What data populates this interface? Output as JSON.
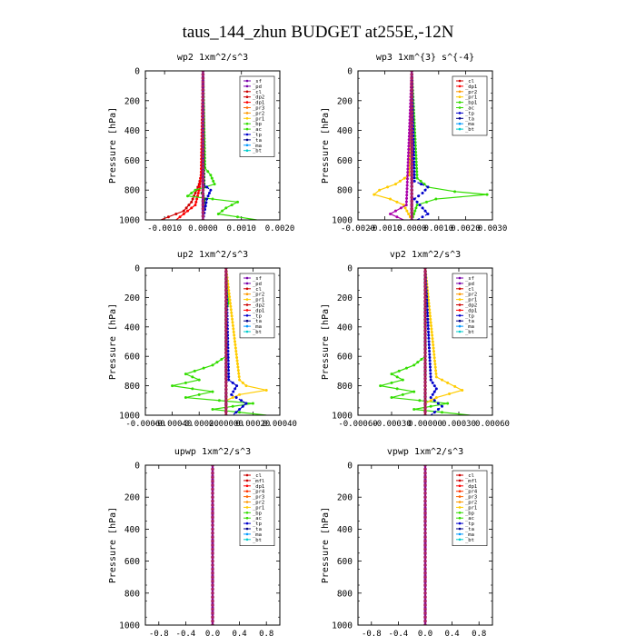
{
  "figure_title": "taus_144_zhun  BUDGET at255E,-12N",
  "chart_data": [
    {
      "id": "wp2",
      "type": "line",
      "title": "wp2   1xm^2/s^3",
      "ylabel": "Pressure [hPa]",
      "ylim": [
        1000,
        0
      ],
      "xlim": [
        -0.0015,
        0.002
      ],
      "xticks": [
        "-0.0010",
        "0.0000",
        "0.0010",
        "0.0020"
      ],
      "xtick_values": [
        -0.001,
        0.0,
        0.001,
        0.002
      ],
      "yticks": [
        "0",
        "200",
        "400",
        "600",
        "800",
        "1000"
      ],
      "ytick_values": [
        0,
        200,
        400,
        600,
        800,
        1000
      ],
      "legend": [
        "_sf",
        "_pd",
        "_cl",
        "_dp2",
        "_dp1",
        "_pr3",
        "_pr2",
        "_pr1",
        "_bp",
        "_ac",
        "_tp",
        "_ta",
        "_ma",
        "_bt"
      ],
      "series": [
        {
          "name": "_cl",
          "color": "#cc0000",
          "p": [
            0,
            600,
            700,
            760,
            820,
            880,
            940,
            1000
          ],
          "x": [
            0,
            0,
            -5e-05,
            -0.0001,
            -0.0002,
            -0.0003,
            -0.0005,
            -0.0011
          ]
        },
        {
          "name": "_dp1",
          "color": "#ff0000",
          "p": [
            0,
            700,
            800,
            900,
            1000
          ],
          "x": [
            0,
            -5e-05,
            -0.0001,
            -0.0002,
            -0.0007
          ]
        },
        {
          "name": "_pr1",
          "color": "#33dd00",
          "p": [
            0,
            650,
            700,
            760,
            800,
            840,
            880,
            920,
            960,
            1000
          ],
          "x": [
            0,
            5e-05,
            0.0002,
            0.0003,
            -0.0002,
            -0.0004,
            0.0009,
            0.0006,
            0.0004,
            0.0014
          ]
        },
        {
          "name": "_bp",
          "color": "#008800",
          "p": [
            0,
            780,
            820,
            860,
            1000
          ],
          "x": [
            0,
            3e-05,
            -3e-05,
            5e-05,
            0.0
          ]
        },
        {
          "name": "_tp",
          "color": "#0000cc",
          "p": [
            0,
            760,
            800,
            860,
            1000
          ],
          "x": [
            0,
            0.0,
            0.0002,
            0.0001,
            0.0
          ]
        },
        {
          "name": "_bt",
          "color": "#00cccc",
          "p": [
            0,
            1000
          ],
          "x": [
            0,
            0
          ]
        },
        {
          "name": "_pd",
          "color": "#7700aa",
          "p": [
            0,
            1000
          ],
          "x": [
            0,
            0
          ]
        }
      ]
    },
    {
      "id": "wp3",
      "type": "line",
      "title": "wp3   1xm^{3} s^{-4}",
      "ylabel": "Pressure [hPa]",
      "ylim": [
        1000,
        0
      ],
      "xlim": [
        -0.002,
        0.003
      ],
      "xticks": [
        "-0.0020",
        "-0.0010",
        "0.0000",
        "0.0010",
        "0.0020",
        "0.0030"
      ],
      "xtick_values": [
        -0.002,
        -0.001,
        0.0,
        0.001,
        0.002,
        0.003
      ],
      "yticks": [
        "0",
        "200",
        "400",
        "600",
        "800",
        "1000"
      ],
      "ytick_values": [
        0,
        200,
        400,
        600,
        800,
        1000
      ],
      "legend": [
        "_cl",
        "_dp1",
        "_pr2",
        "_pr1",
        "_bp1",
        "_ac",
        "_tp",
        "_ta",
        "_ma",
        "_bt"
      ],
      "series": [
        {
          "name": "_pr1",
          "color": "#ffcc00",
          "p": [
            0,
            700,
            760,
            800,
            830,
            860,
            900,
            1000
          ],
          "x": [
            0,
            -0.0001,
            -0.0006,
            -0.0012,
            -0.0014,
            -0.0008,
            -0.0003,
            0.0
          ]
        },
        {
          "name": "_ac",
          "color": "#33dd00",
          "p": [
            0,
            720,
            780,
            810,
            830,
            860,
            900,
            1000
          ],
          "x": [
            0,
            0.0002,
            0.0006,
            0.0016,
            0.0028,
            0.0009,
            0.0002,
            0.0
          ]
        },
        {
          "name": "_tp",
          "color": "#0000cc",
          "p": [
            0,
            740,
            780,
            820,
            860,
            960,
            1000
          ],
          "x": [
            0,
            0.0001,
            0.0006,
            0.0004,
            0.0001,
            0.0006,
            0.0002
          ]
        },
        {
          "name": "_dp1",
          "color": "#aa00aa",
          "p": [
            0,
            900,
            960,
            1000
          ],
          "x": [
            0,
            -0.0002,
            -0.0008,
            -0.0003
          ]
        },
        {
          "name": "_cl",
          "color": "#cc0000",
          "p": [
            0,
            1000
          ],
          "x": [
            0,
            0
          ]
        }
      ]
    },
    {
      "id": "up2",
      "type": "line",
      "title": "up2   1xm^2/s^3",
      "ylabel": "Pressure [hPa]",
      "ylim": [
        1000,
        0
      ],
      "xlim": [
        -0.0006,
        0.0004
      ],
      "xticks": [
        "-0.00060",
        "-0.00040",
        "-0.00020",
        "0.00000",
        "0.00020",
        "0.00040"
      ],
      "xtick_values": [
        -0.0006,
        -0.0004,
        -0.0002,
        0.0,
        0.0002,
        0.0004
      ],
      "yticks": [
        "0",
        "200",
        "400",
        "600",
        "800",
        "1000"
      ],
      "ytick_values": [
        0,
        200,
        400,
        600,
        800,
        1000
      ],
      "legend": [
        "_sf",
        "_pd",
        "_cl",
        "_pr2",
        "_pr1",
        "_dp2",
        "_dp1",
        "_tp",
        "_ta",
        "_ma",
        "_bt"
      ],
      "series": [
        {
          "name": "_dp1",
          "color": "#33dd00",
          "p": [
            0,
            180,
            240,
            280,
            600,
            660,
            720,
            760,
            800,
            840,
            880,
            920,
            960,
            1000
          ],
          "x": [
            0,
            1e-05,
            2e-05,
            0.0,
            0.0,
            -0.0001,
            -0.0003,
            -0.0002,
            -0.0004,
            -0.0001,
            -0.0003,
            0.0002,
            -0.0001,
            0.0003
          ]
        },
        {
          "name": "_pr1",
          "color": "#ffcc00",
          "p": [
            0,
            760,
            800,
            830,
            860,
            900,
            1000
          ],
          "x": [
            0,
            0.0001,
            0.00015,
            0.0003,
            0.0001,
            0.0,
            0.0
          ]
        },
        {
          "name": "_tp",
          "color": "#0000cc",
          "p": [
            0,
            760,
            800,
            860,
            920,
            1000
          ],
          "x": [
            0,
            2e-05,
            8e-05,
            4e-05,
            0.00015,
            5e-05
          ]
        },
        {
          "name": "_cl",
          "color": "#cc0000",
          "p": [
            0,
            1000
          ],
          "x": [
            0,
            0
          ]
        },
        {
          "name": "_bt",
          "color": "#00cccc",
          "p": [
            0,
            1000
          ],
          "x": [
            0,
            0
          ]
        }
      ]
    },
    {
      "id": "vp2",
      "type": "line",
      "title": "vp2   1xm^2/s^3",
      "ylabel": "Pressure [hPa]",
      "ylim": [
        1000,
        0
      ],
      "xlim": [
        -0.0006,
        0.0006
      ],
      "xticks": [
        "-0.00060",
        "-0.00030",
        "0.00000",
        "0.00030",
        "0.00060"
      ],
      "xtick_values": [
        -0.0006,
        -0.0003,
        0.0,
        0.0003,
        0.0006
      ],
      "yticks": [
        "0",
        "200",
        "400",
        "600",
        "800",
        "1000"
      ],
      "ytick_values": [
        0,
        200,
        400,
        600,
        800,
        1000
      ],
      "legend": [
        "_sf",
        "_pd",
        "_cl",
        "_pr2",
        "_pr1",
        "_dp2",
        "_dp1",
        "_tp",
        "_ta",
        "_ma",
        "_bt"
      ],
      "series": [
        {
          "name": "_dp1",
          "color": "#33dd00",
          "p": [
            0,
            180,
            240,
            280,
            600,
            660,
            720,
            760,
            800,
            840,
            880,
            920,
            960,
            1000
          ],
          "x": [
            0,
            2e-05,
            3e-05,
            0.0,
            0.0,
            -0.0001,
            -0.0003,
            -0.0002,
            -0.0004,
            -0.0001,
            -0.0003,
            0.0002,
            -0.0001,
            0.0004
          ]
        },
        {
          "name": "_pr1",
          "color": "#ffcc00",
          "p": [
            0,
            740,
            780,
            830,
            880,
            920,
            1000
          ],
          "x": [
            0,
            0.0001,
            0.0002,
            0.00033,
            0.0001,
            0.0,
            0.0
          ]
        },
        {
          "name": "_tp",
          "color": "#0000cc",
          "p": [
            0,
            760,
            820,
            880,
            940,
            1000
          ],
          "x": [
            0,
            5e-05,
            0.0001,
            5e-05,
            0.00015,
            5e-05
          ]
        },
        {
          "name": "_cl",
          "color": "#cc0000",
          "p": [
            0,
            1000
          ],
          "x": [
            0,
            0
          ]
        },
        {
          "name": "_bt",
          "color": "#00cccc",
          "p": [
            0,
            1000
          ],
          "x": [
            0,
            0
          ]
        }
      ]
    },
    {
      "id": "upwp",
      "type": "line",
      "title": "upwp   1xm^2/s^3",
      "ylabel": "Pressure [hPa]",
      "ylim": [
        1000,
        0
      ],
      "xlim": [
        -1.0,
        1.0
      ],
      "xticks": [
        "-0.8",
        "-0.4",
        "0.0",
        "0.4",
        "0.8"
      ],
      "xtick_values": [
        -0.8,
        -0.4,
        0.0,
        0.4,
        0.8
      ],
      "yticks": [
        "0",
        "200",
        "400",
        "600",
        "800",
        "1000"
      ],
      "ytick_values": [
        0,
        200,
        400,
        600,
        800,
        1000
      ],
      "legend": [
        "_cl",
        "_mfl",
        "_dp1",
        "_pr4",
        "_pr3",
        "_pr2",
        "_pr1",
        "_bp",
        "_ac",
        "_tp",
        "_ta",
        "_ma",
        "_bt"
      ],
      "series": [
        {
          "name": "_cl",
          "color": "#7700aa",
          "p": [
            0,
            1000
          ],
          "x": [
            0,
            0
          ]
        }
      ]
    },
    {
      "id": "vpwp",
      "type": "line",
      "title": "vpwp   1xm^2/s^3",
      "ylabel": "Pressure [hPa]",
      "ylim": [
        1000,
        0
      ],
      "xlim": [
        -1.0,
        1.0
      ],
      "xticks": [
        "-0.8",
        "-0.4",
        "0.0",
        "0.4",
        "0.8"
      ],
      "xtick_values": [
        -0.8,
        -0.4,
        0.0,
        0.4,
        0.8
      ],
      "yticks": [
        "0",
        "200",
        "400",
        "600",
        "800",
        "1000"
      ],
      "ytick_values": [
        0,
        200,
        400,
        600,
        800,
        1000
      ],
      "legend": [
        "_cl",
        "_mfl",
        "_dp1",
        "_pr4",
        "_pr3",
        "_pr2",
        "_pr1",
        "_bp",
        "_ac",
        "_tp",
        "_ta",
        "_ma",
        "_bt"
      ],
      "series": [
        {
          "name": "_cl",
          "color": "#7700aa",
          "p": [
            0,
            1000
          ],
          "x": [
            0,
            0
          ]
        }
      ]
    }
  ],
  "legend_colors": {
    "_sf": "#7700aa",
    "_pd": "#7700aa",
    "_cl": "#cc0000",
    "_mfl": "#cc0000",
    "_dp2": "#cc0000",
    "_dp1": "#ff0000",
    "_pr4": "#ff3300",
    "_pr3": "#ff6600",
    "_pr2": "#ff9900",
    "_pr1": "#ffcc00",
    "_bp": "#33dd00",
    "_bp1": "#33dd00",
    "_ac": "#33dd00",
    "_tp": "#0000cc",
    "_ta": "#000088",
    "_ma": "#0099ff",
    "_bt": "#00cccc"
  }
}
